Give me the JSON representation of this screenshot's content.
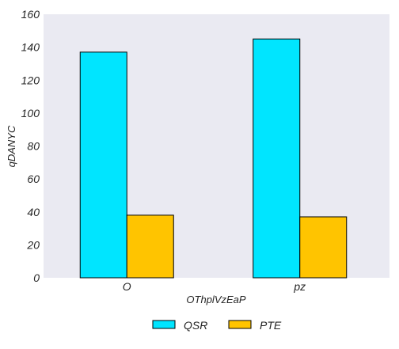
{
  "chart_data": {
    "type": "bar",
    "categories": [
      "O",
      "pz"
    ],
    "series": [
      {
        "name": "QSR",
        "values": [
          137,
          145
        ],
        "color": "#00e5ff"
      },
      {
        "name": "PTE",
        "values": [
          38,
          37
        ],
        "color": "#ffc400"
      }
    ],
    "title": "",
    "xlabel": "OThplVzEaP",
    "ylabel": "qDANYC",
    "ylim": [
      0,
      160
    ],
    "yticks": [
      0,
      20,
      40,
      60,
      80,
      100,
      120,
      140,
      160
    ],
    "grid": false,
    "legend_position": "bottom-center",
    "background_color": "#eaeaf2",
    "edge_color": "#000000"
  }
}
